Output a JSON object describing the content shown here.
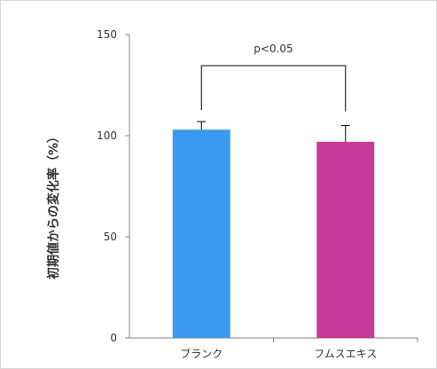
{
  "chart_data": {
    "type": "bar",
    "title": "",
    "xlabel": "",
    "ylabel": "初期値からの変化率（%）",
    "ylim": [
      0,
      150
    ],
    "yticks": [
      0,
      50,
      100,
      150
    ],
    "grid": false,
    "legend": "none",
    "categories": [
      "ブランク",
      "フムスエキス"
    ],
    "values": [
      103,
      97
    ],
    "error_bars": [
      4,
      8
    ],
    "colors": [
      "#3a99f2",
      "#c83a99"
    ],
    "significance": {
      "label": "p<0.05",
      "between": [
        0,
        1
      ]
    }
  }
}
